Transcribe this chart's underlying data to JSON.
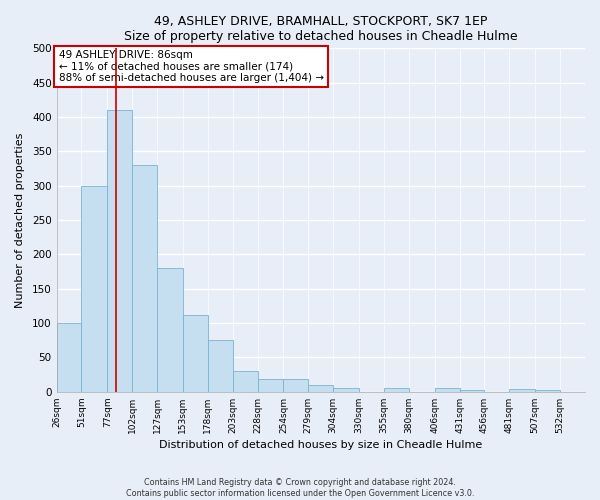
{
  "title": "49, ASHLEY DRIVE, BRAMHALL, STOCKPORT, SK7 1EP",
  "subtitle": "Size of property relative to detached houses in Cheadle Hulme",
  "xlabel": "Distribution of detached houses by size in Cheadle Hulme",
  "ylabel": "Number of detached properties",
  "bin_labels": [
    "26sqm",
    "51sqm",
    "77sqm",
    "102sqm",
    "127sqm",
    "153sqm",
    "178sqm",
    "203sqm",
    "228sqm",
    "254sqm",
    "279sqm",
    "304sqm",
    "330sqm",
    "355sqm",
    "380sqm",
    "406sqm",
    "431sqm",
    "456sqm",
    "481sqm",
    "507sqm",
    "532sqm"
  ],
  "bin_edges": [
    26,
    51,
    77,
    102,
    127,
    153,
    178,
    203,
    228,
    254,
    279,
    304,
    330,
    355,
    380,
    406,
    431,
    456,
    481,
    507,
    532,
    557
  ],
  "bar_heights": [
    100,
    300,
    410,
    330,
    180,
    112,
    75,
    30,
    18,
    18,
    10,
    5,
    0,
    6,
    0,
    5,
    3,
    0,
    4,
    3,
    0
  ],
  "bar_color": "#c5dff0",
  "bar_edge_color": "#7ab3d4",
  "property_line_x": 86,
  "property_line_color": "#cc0000",
  "annotation_title": "49 ASHLEY DRIVE: 86sqm",
  "annotation_line1": "← 11% of detached houses are smaller (174)",
  "annotation_line2": "88% of semi-detached houses are larger (1,404) →",
  "annotation_box_color": "white",
  "annotation_box_edge_color": "#cc0000",
  "ylim": [
    0,
    500
  ],
  "yticks": [
    0,
    50,
    100,
    150,
    200,
    250,
    300,
    350,
    400,
    450,
    500
  ],
  "tick_positions": [
    26,
    51,
    77,
    102,
    127,
    153,
    178,
    203,
    228,
    254,
    279,
    304,
    330,
    355,
    380,
    406,
    431,
    456,
    481,
    507,
    532
  ],
  "footnote1": "Contains HM Land Registry data © Crown copyright and database right 2024.",
  "footnote2": "Contains public sector information licensed under the Open Government Licence v3.0.",
  "background_color": "#e8eef8",
  "grid_color": "white"
}
